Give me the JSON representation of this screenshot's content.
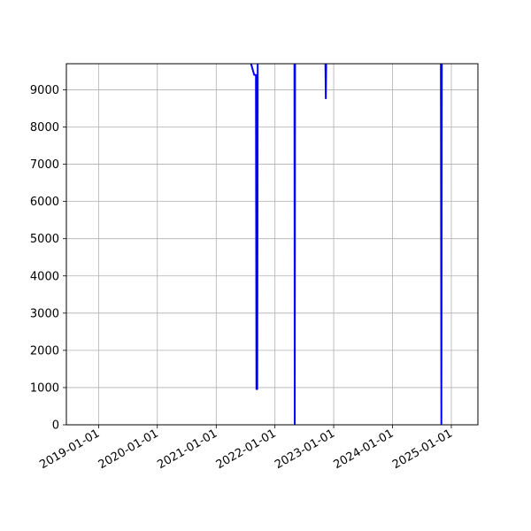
{
  "chart_data": {
    "type": "line",
    "title": "",
    "xlabel": "",
    "ylabel": "",
    "grid": true,
    "x_axis": {
      "type": "date",
      "range": [
        "2018-06-15",
        "2025-06-15"
      ],
      "ticks": [
        "2019-01-01",
        "2020-01-01",
        "2021-01-01",
        "2022-01-01",
        "2023-01-01",
        "2024-01-01",
        "2025-01-01"
      ]
    },
    "y_axis": {
      "range": [
        0,
        9700
      ],
      "ticks": [
        0,
        1000,
        2000,
        3000,
        4000,
        5000,
        6000,
        7000,
        8000,
        9000
      ],
      "tick_labels": [
        "0",
        "1000",
        "2000",
        "3000",
        "4000",
        "5000",
        "6000",
        "7000",
        "8000",
        "9000"
      ]
    },
    "series": [
      {
        "color": "#0000ff",
        "x": [
          "2021-07-20",
          "2021-08-25",
          "2021-09-05",
          "2021-09-08",
          "2021-09-10",
          "2021-09-13",
          "2021-09-16",
          "2021-09-19",
          "2022-05-02",
          "2022-05-04",
          "2022-05-06",
          "2022-11-10",
          "2022-11-13",
          "2022-11-16",
          "2024-10-28",
          "2024-10-31",
          "2024-11-03"
        ],
        "y": [
          9950,
          9400,
          9400,
          960,
          960,
          960,
          9950,
          9950,
          9950,
          0,
          9950,
          9950,
          8770,
          9950,
          9950,
          0,
          9950
        ]
      }
    ]
  }
}
